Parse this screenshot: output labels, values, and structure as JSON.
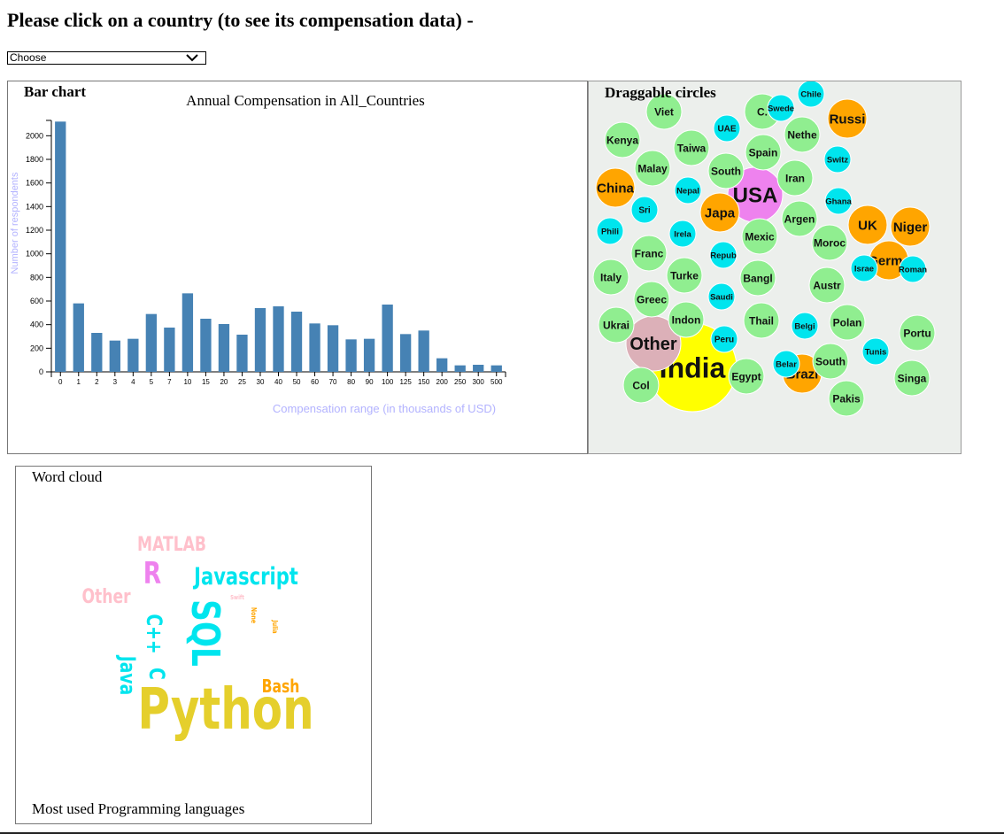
{
  "heading": "Please click on a country (to see its compensation data) -",
  "select": {
    "value": "Choose",
    "icon": "chevron-down-icon"
  },
  "bar_panel": {
    "label": "Bar chart"
  },
  "bubble_panel": {
    "label": "Draggable circles"
  },
  "cloud_panel": {
    "label": "Word cloud",
    "caption": "Most used Programming languages"
  },
  "chart_data": [
    {
      "type": "bar",
      "title": "Annual Compensation in All_Countries",
      "xlabel": "Compensation range (in thousands of USD)",
      "ylabel": "Number of respondents",
      "categories": [
        "0",
        "1",
        "2",
        "3",
        "4",
        "5",
        "7",
        "10",
        "15",
        "20",
        "25",
        "30",
        "40",
        "50",
        "60",
        "70",
        "80",
        "90",
        "100",
        "125",
        "150",
        "200",
        "250",
        "300",
        "500"
      ],
      "values": [
        2120,
        580,
        330,
        265,
        280,
        490,
        375,
        665,
        450,
        405,
        315,
        540,
        555,
        510,
        410,
        395,
        275,
        280,
        570,
        320,
        350,
        115,
        55,
        60,
        55
      ],
      "ylim": [
        0,
        2130
      ],
      "yticks": [
        0,
        200,
        400,
        600,
        800,
        1000,
        1200,
        1400,
        1600,
        1800,
        2000
      ],
      "bar_color": "#4682b4",
      "axis_label_color": "#b3b3ff",
      "grid": false
    },
    {
      "type": "bubble",
      "colors": {
        "large": "#ffa500",
        "medium": "#90ee90",
        "small": "#00e5ee",
        "usa": "#ee82ee",
        "india": "#ffff00",
        "other": "#dcb0b8"
      },
      "bubbles": [
        {
          "label": "India",
          "group": "india",
          "weight": 9
        },
        {
          "label": "USA",
          "group": "usa",
          "weight": 7
        },
        {
          "label": "Other",
          "group": "other",
          "weight": 6
        },
        {
          "label": "China",
          "group": "large",
          "weight": 4
        },
        {
          "label": "Russi",
          "group": "large",
          "weight": 4
        },
        {
          "label": "Japa",
          "group": "large",
          "weight": 4
        },
        {
          "label": "UK",
          "group": "large",
          "weight": 4
        },
        {
          "label": "Niger",
          "group": "large",
          "weight": 4
        },
        {
          "label": "Germa",
          "group": "large",
          "weight": 4
        },
        {
          "label": "Brazi",
          "group": "large",
          "weight": 4
        },
        {
          "label": "Viet",
          "group": "medium",
          "weight": 3
        },
        {
          "label": "C.",
          "group": "medium",
          "weight": 3
        },
        {
          "label": "Kenya",
          "group": "medium",
          "weight": 3
        },
        {
          "label": "Taiwa",
          "group": "medium",
          "weight": 3
        },
        {
          "label": "Spain",
          "group": "medium",
          "weight": 3
        },
        {
          "label": "Nethe",
          "group": "medium",
          "weight": 3
        },
        {
          "label": "Malay",
          "group": "medium",
          "weight": 3
        },
        {
          "label": "South",
          "group": "medium",
          "weight": 3
        },
        {
          "label": "Iran",
          "group": "medium",
          "weight": 3
        },
        {
          "label": "Argen",
          "group": "medium",
          "weight": 3
        },
        {
          "label": "Mexic",
          "group": "medium",
          "weight": 3
        },
        {
          "label": "Moroc",
          "group": "medium",
          "weight": 3
        },
        {
          "label": "Franc",
          "group": "medium",
          "weight": 3
        },
        {
          "label": "Italy",
          "group": "medium",
          "weight": 3
        },
        {
          "label": "Turke",
          "group": "medium",
          "weight": 3
        },
        {
          "label": "Bangl",
          "group": "medium",
          "weight": 3
        },
        {
          "label": "Austr",
          "group": "medium",
          "weight": 3
        },
        {
          "label": "Greec",
          "group": "medium",
          "weight": 3
        },
        {
          "label": "Ukrai",
          "group": "medium",
          "weight": 3
        },
        {
          "label": "Indon",
          "group": "medium",
          "weight": 3
        },
        {
          "label": "Thail",
          "group": "medium",
          "weight": 3
        },
        {
          "label": "Polan",
          "group": "medium",
          "weight": 3
        },
        {
          "label": "Portu",
          "group": "medium",
          "weight": 3
        },
        {
          "label": "Col",
          "group": "medium",
          "weight": 3
        },
        {
          "label": "Egypt",
          "group": "medium",
          "weight": 3
        },
        {
          "label": "South",
          "group": "medium",
          "weight": 3
        },
        {
          "label": "Singa",
          "group": "medium",
          "weight": 3
        },
        {
          "label": "Pakis",
          "group": "medium",
          "weight": 3
        },
        {
          "label": "Chile",
          "group": "small",
          "weight": 2
        },
        {
          "label": "Swede",
          "group": "small",
          "weight": 2
        },
        {
          "label": "UAE",
          "group": "small",
          "weight": 2
        },
        {
          "label": "Switz",
          "group": "small",
          "weight": 2
        },
        {
          "label": "Nepal",
          "group": "small",
          "weight": 2
        },
        {
          "label": "Sri",
          "group": "small",
          "weight": 2
        },
        {
          "label": "Ghana",
          "group": "small",
          "weight": 2
        },
        {
          "label": "Phili",
          "group": "small",
          "weight": 2
        },
        {
          "label": "Irela",
          "group": "small",
          "weight": 2
        },
        {
          "label": "Repub",
          "group": "small",
          "weight": 2
        },
        {
          "label": "Israe",
          "group": "small",
          "weight": 2
        },
        {
          "label": "Roman",
          "group": "small",
          "weight": 2
        },
        {
          "label": "Saudi",
          "group": "small",
          "weight": 2
        },
        {
          "label": "Belgi",
          "group": "small",
          "weight": 2
        },
        {
          "label": "Peru",
          "group": "small",
          "weight": 2
        },
        {
          "label": "Belar",
          "group": "small",
          "weight": 2
        },
        {
          "label": "Tunis",
          "group": "small",
          "weight": 2
        }
      ]
    },
    {
      "type": "wordcloud",
      "words": [
        {
          "text": "Python",
          "color": "#e5cf2c",
          "weight": 10
        },
        {
          "text": "SQL",
          "color": "#00e5ee",
          "weight": 6
        },
        {
          "text": "Javascript",
          "color": "#00e5ee",
          "weight": 5
        },
        {
          "text": "C++",
          "color": "#00e5ee",
          "weight": 4
        },
        {
          "text": "Java",
          "color": "#00e5ee",
          "weight": 4
        },
        {
          "text": "C",
          "color": "#00e5ee",
          "weight": 4
        },
        {
          "text": "R",
          "color": "#ee82ee",
          "weight": 5
        },
        {
          "text": "MATLAB",
          "color": "#ffc0cb",
          "weight": 4
        },
        {
          "text": "Other",
          "color": "#ffc0cb",
          "weight": 4
        },
        {
          "text": "Bash",
          "color": "#ffa500",
          "weight": 3
        },
        {
          "text": "Swift",
          "color": "#ffc0cb",
          "weight": 1
        },
        {
          "text": "None",
          "color": "#ffa500",
          "weight": 1
        },
        {
          "text": "Julia",
          "color": "#ffa500",
          "weight": 1
        }
      ]
    }
  ]
}
